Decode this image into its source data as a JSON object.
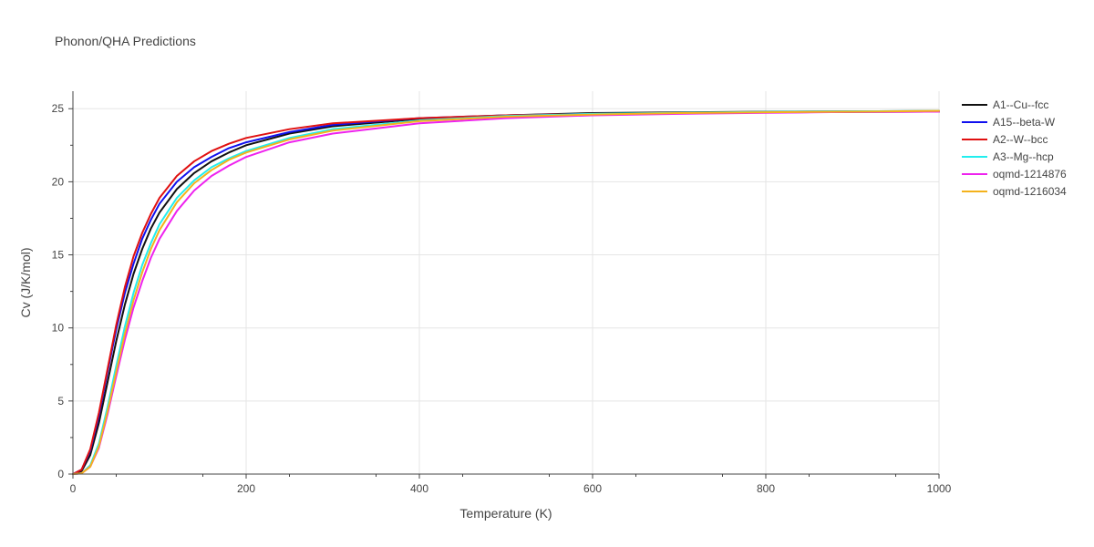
{
  "chart_data": {
    "type": "line",
    "title": "Phonon/QHA Predictions",
    "xlabel": "Temperature (K)",
    "ylabel": "Cv (J/K/mol)",
    "xlim": [
      0,
      1000
    ],
    "ylim": [
      0,
      26.2
    ],
    "xticks": [
      0,
      200,
      400,
      600,
      800,
      1000
    ],
    "yticks": [
      0,
      5,
      10,
      15,
      20,
      25
    ],
    "xtick_labels": [
      "0",
      "200",
      "400",
      "600",
      "800",
      "1000"
    ],
    "ytick_labels": [
      "0",
      "5",
      "10",
      "15",
      "20",
      "25"
    ],
    "grid": true,
    "legend_position": "right",
    "series": [
      {
        "name": "A1--Cu--fcc",
        "color": "#111111",
        "x": [
          0,
          10,
          20,
          30,
          40,
          50,
          60,
          70,
          80,
          90,
          100,
          120,
          140,
          160,
          180,
          200,
          250,
          300,
          400,
          500,
          600,
          700,
          800,
          900,
          1000
        ],
        "y": [
          0,
          0.2,
          1.3,
          3.5,
          6.3,
          9.1,
          11.6,
          13.7,
          15.4,
          16.8,
          17.9,
          19.5,
          20.6,
          21.4,
          22.0,
          22.5,
          23.3,
          23.8,
          24.3,
          24.55,
          24.7,
          24.75,
          24.8,
          24.82,
          24.85
        ]
      },
      {
        "name": "A15--beta-W",
        "color": "#1010ee",
        "x": [
          0,
          10,
          20,
          30,
          40,
          50,
          60,
          70,
          80,
          90,
          100,
          120,
          140,
          160,
          180,
          200,
          250,
          300,
          400,
          500,
          600,
          700,
          800,
          900,
          1000
        ],
        "y": [
          0,
          0.3,
          1.6,
          4.0,
          7.0,
          9.9,
          12.4,
          14.4,
          16.1,
          17.4,
          18.5,
          20.0,
          21.0,
          21.7,
          22.3,
          22.7,
          23.4,
          23.9,
          24.35,
          24.55,
          24.65,
          24.7,
          24.75,
          24.78,
          24.8
        ]
      },
      {
        "name": "A2--W--bcc",
        "color": "#e01010",
        "x": [
          0,
          10,
          20,
          30,
          40,
          50,
          60,
          70,
          80,
          90,
          100,
          120,
          140,
          160,
          180,
          200,
          250,
          300,
          400,
          500,
          600,
          700,
          800,
          900,
          1000
        ],
        "y": [
          0,
          0.3,
          1.7,
          4.2,
          7.2,
          10.2,
          12.8,
          14.9,
          16.5,
          17.8,
          18.9,
          20.4,
          21.4,
          22.1,
          22.6,
          23.0,
          23.6,
          24.0,
          24.35,
          24.55,
          24.65,
          24.7,
          24.75,
          24.78,
          24.8
        ]
      },
      {
        "name": "A3--Mg--hcp",
        "color": "#22eeee",
        "x": [
          0,
          10,
          20,
          30,
          40,
          50,
          60,
          70,
          80,
          90,
          100,
          120,
          140,
          160,
          180,
          200,
          250,
          300,
          400,
          500,
          600,
          700,
          800,
          900,
          1000
        ],
        "y": [
          0,
          0.05,
          0.6,
          2.1,
          4.6,
          7.4,
          10.1,
          12.4,
          14.3,
          15.8,
          17.1,
          18.9,
          20.1,
          21.0,
          21.6,
          22.1,
          23.0,
          23.6,
          24.2,
          24.5,
          24.65,
          24.72,
          24.78,
          24.82,
          24.85
        ]
      },
      {
        "name": "oqmd-1214876",
        "color": "#ee22ee",
        "x": [
          0,
          10,
          20,
          30,
          40,
          50,
          60,
          70,
          80,
          90,
          100,
          120,
          140,
          160,
          180,
          200,
          250,
          300,
          400,
          500,
          600,
          700,
          800,
          900,
          1000
        ],
        "y": [
          0,
          0.05,
          0.5,
          1.8,
          4.1,
          6.7,
          9.2,
          11.4,
          13.2,
          14.8,
          16.1,
          18.0,
          19.4,
          20.4,
          21.1,
          21.7,
          22.7,
          23.3,
          24.0,
          24.35,
          24.55,
          24.65,
          24.72,
          24.78,
          24.8
        ]
      },
      {
        "name": "oqmd-1216034",
        "color": "#f4b21c",
        "x": [
          0,
          10,
          20,
          30,
          40,
          50,
          60,
          70,
          80,
          90,
          100,
          120,
          140,
          160,
          180,
          200,
          250,
          300,
          400,
          500,
          600,
          700,
          800,
          900,
          1000
        ],
        "y": [
          0,
          0.05,
          0.5,
          1.9,
          4.3,
          7.0,
          9.6,
          11.9,
          13.8,
          15.4,
          16.7,
          18.6,
          19.9,
          20.8,
          21.5,
          22.0,
          22.9,
          23.5,
          24.15,
          24.45,
          24.6,
          24.7,
          24.76,
          24.8,
          24.85
        ]
      }
    ]
  }
}
